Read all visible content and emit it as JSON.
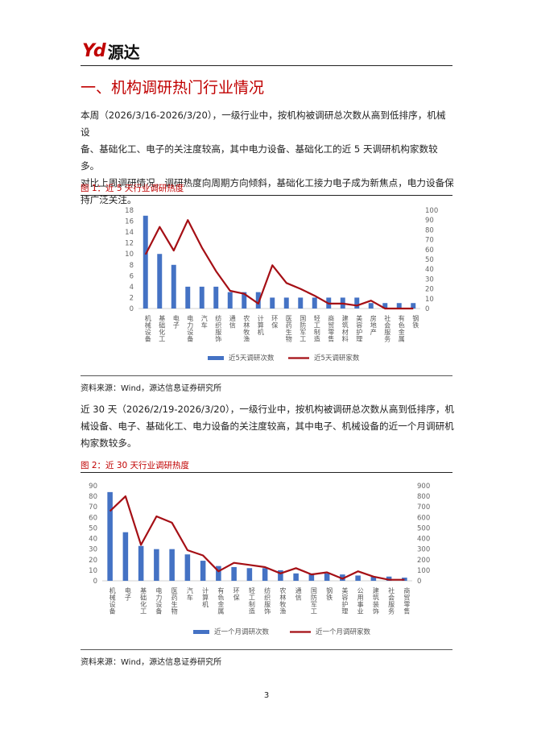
{
  "header": {
    "logo_mark": "Yd",
    "logo_text": "源达",
    "colors": {
      "brand": "#c00000"
    }
  },
  "section": {
    "title": "一、机构调研热门行业情况"
  },
  "paragraph1": {
    "lines": [
      "本周（2026/3/16-2026/3/20），一级行业中，按机构被调研总次数从高到低排序，机械设",
      "备、基础化工、电子的关注度较高，其中电力设备、基础化工的近 5 天调研机构家数较多。",
      "对比上周调研情况，调研热度向周期方向倾斜，基础化工接力电子成为新焦点，电力设备保",
      "持广泛关注。"
    ]
  },
  "figure1": {
    "title": "图 1：近 5 天行业调研热度",
    "source": "资料来源：Wind，源达信息证券研究所"
  },
  "paragraph2": {
    "lines": [
      "近 30 天（2026/2/19-2026/3/20），一级行业中，按机构被调研总次数从高到低排序，机",
      "械设备、电子、基础化工、电力设备的关注度较高，其中电子、机械设备的近一个月调研机",
      "构家数较多。"
    ]
  },
  "figure2": {
    "title": "图 2：近 30 天行业调研热度",
    "source": "资料来源：Wind，源达信息证券研究所"
  },
  "page": {
    "number": "3"
  },
  "chart_data": [
    {
      "type": "bar",
      "colors": {
        "bar": "#4472c4",
        "line": "#a50f15"
      },
      "categories": [
        "机械设备",
        "基础化工",
        "电子",
        "电力设备",
        "汽车",
        "纺织服饰",
        "通信",
        "农林牧渔",
        "计算机",
        "环保",
        "医药生物",
        "国防军工",
        "轻工制造",
        "商贸零售",
        "建筑材料",
        "美容护理",
        "房地产",
        "社会服务",
        "有色金属",
        "钢铁"
      ],
      "series": [
        {
          "name": "近5天调研次数",
          "type": "bar",
          "axis": "left",
          "values": [
            17,
            10,
            8,
            4,
            4,
            4,
            3,
            3,
            3,
            2,
            2,
            2,
            2,
            2,
            2,
            2,
            1,
            1,
            1,
            1
          ]
        },
        {
          "name": "近5天调研家数",
          "type": "line",
          "axis": "right",
          "values": [
            55,
            83,
            59,
            90,
            62,
            38,
            18,
            15,
            5,
            44,
            26,
            20,
            13,
            5,
            5,
            3,
            8,
            0,
            0,
            0
          ]
        }
      ],
      "ylim_left": [
        0,
        18
      ],
      "yticks_left": [
        "0",
        "2",
        "4",
        "6",
        "8",
        "10",
        "12",
        "14",
        "16",
        "18"
      ],
      "ylim_right": [
        0,
        100
      ],
      "yticks_right": [
        "0",
        "10",
        "20",
        "30",
        "40",
        "50",
        "60",
        "70",
        "80",
        "90",
        "100"
      ],
      "legend": "bottom",
      "grid": false
    },
    {
      "type": "bar",
      "colors": {
        "bar": "#4472c4",
        "line": "#a50f15"
      },
      "categories": [
        "机械设备",
        "电子",
        "基础化工",
        "电力设备",
        "医药生物",
        "汽车",
        "计算机",
        "有色金属",
        "环保",
        "轻工制造",
        "纺织服饰",
        "农林牧渔",
        "通信",
        "国防军工",
        "钢铁",
        "美容护理",
        "公用事业",
        "建筑装饰",
        "社会服务",
        "商贸零售"
      ],
      "series": [
        {
          "name": "近一个月调研次数",
          "type": "bar",
          "axis": "left",
          "values": [
            84,
            46,
            33,
            30,
            30,
            25,
            19,
            14,
            13,
            12,
            12,
            10,
            7,
            7,
            7,
            6,
            5,
            4,
            4,
            3
          ]
        },
        {
          "name": "近一个月调研家数",
          "type": "line",
          "axis": "right",
          "values": [
            660,
            800,
            340,
            610,
            550,
            290,
            240,
            90,
            170,
            150,
            130,
            70,
            120,
            60,
            80,
            20,
            90,
            40,
            10,
            10
          ]
        }
      ],
      "ylim_left": [
        0,
        90
      ],
      "yticks_left": [
        "0",
        "10",
        "20",
        "30",
        "40",
        "50",
        "60",
        "70",
        "80",
        "90"
      ],
      "ylim_right": [
        0,
        900
      ],
      "yticks_right": [
        "0",
        "100",
        "200",
        "300",
        "400",
        "500",
        "600",
        "700",
        "800",
        "900"
      ],
      "legend": "bottom",
      "grid": false
    }
  ]
}
